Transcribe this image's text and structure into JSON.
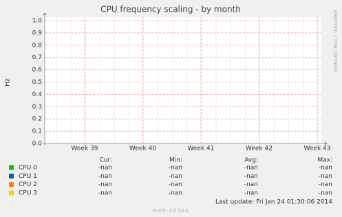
{
  "chart_data": {
    "type": "line",
    "title": "CPU frequency scaling - by month",
    "ylabel": "Hz",
    "side_text": "RRDTOOL / TOBI OETIKER",
    "categories": [
      "Week 39",
      "Week 40",
      "Week 41",
      "Week 42",
      "Week 43"
    ],
    "ylim": [
      0,
      1
    ],
    "yticks": [
      {
        "value": 0,
        "label": "0.0"
      },
      0.1,
      0.2,
      0.3,
      0.4,
      0.5,
      0.6,
      0.7,
      0.8,
      0.9,
      {
        "value": 1,
        "label": "1.0"
      }
    ],
    "grid": true,
    "stat_headers": [
      "Cur:",
      "Min:",
      "Avg:",
      "Max:"
    ],
    "series": [
      {
        "name": "CPU 0",
        "color": "#00cc00",
        "values": [
          null,
          null,
          null,
          null,
          null
        ],
        "stats": [
          "-nan",
          "-nan",
          "-nan",
          "-nan"
        ]
      },
      {
        "name": "CPU 1",
        "color": "#0066b3",
        "values": [
          null,
          null,
          null,
          null,
          null
        ],
        "stats": [
          "-nan",
          "-nan",
          "-nan",
          "-nan"
        ]
      },
      {
        "name": "CPU 2",
        "color": "#ff8000",
        "values": [
          null,
          null,
          null,
          null,
          null
        ],
        "stats": [
          "-nan",
          "-nan",
          "-nan",
          "-nan"
        ]
      },
      {
        "name": "CPU 3",
        "color": "#ffcc00",
        "values": [
          null,
          null,
          null,
          null,
          null
        ],
        "stats": [
          "-nan",
          "-nan",
          "-nan",
          "-nan"
        ]
      }
    ],
    "last_update": "Last update:  Fri Jan 24 01:30:06 2014",
    "version": "Munin 2.0.33-1"
  }
}
